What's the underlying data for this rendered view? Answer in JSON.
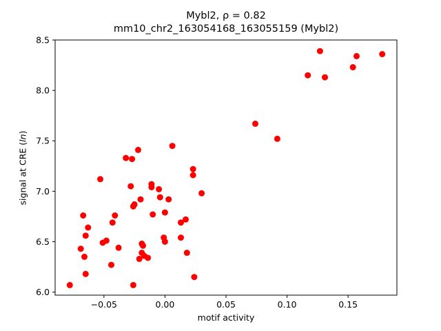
{
  "chart_data": {
    "type": "scatter",
    "title_line1": "Mybl2, ρ = 0.82",
    "title_line2": "mm10_chr2_163054168_163055159 (Mybl2)",
    "xlabel": "motif activity",
    "ylabel": "signal at CRE (ln)",
    "xlim": [
      -0.09,
      0.19
    ],
    "ylim": [
      5.97,
      8.5
    ],
    "xticks": [
      -0.05,
      0.0,
      0.05,
      0.1,
      0.15
    ],
    "xtick_labels": [
      "−0.05",
      "0.00",
      "0.05",
      "0.10",
      "0.15"
    ],
    "yticks": [
      6.0,
      6.5,
      7.0,
      7.5,
      8.0,
      8.5
    ],
    "ytick_labels": [
      "6.0",
      "6.5",
      "7.0",
      "7.5",
      "8.0",
      "8.5"
    ],
    "marker_color": "#ff0000",
    "grid": false,
    "points": [
      {
        "x": -0.078,
        "y": 6.07
      },
      {
        "x": -0.069,
        "y": 6.43
      },
      {
        "x": -0.067,
        "y": 6.76
      },
      {
        "x": -0.066,
        "y": 6.35
      },
      {
        "x": -0.065,
        "y": 6.56
      },
      {
        "x": -0.065,
        "y": 6.18
      },
      {
        "x": -0.063,
        "y": 6.64
      },
      {
        "x": -0.053,
        "y": 7.12
      },
      {
        "x": -0.051,
        "y": 6.49
      },
      {
        "x": -0.048,
        "y": 6.51
      },
      {
        "x": -0.044,
        "y": 6.27
      },
      {
        "x": -0.043,
        "y": 6.69
      },
      {
        "x": -0.041,
        "y": 6.76
      },
      {
        "x": -0.038,
        "y": 6.44
      },
      {
        "x": -0.032,
        "y": 7.33
      },
      {
        "x": -0.028,
        "y": 7.05
      },
      {
        "x": -0.027,
        "y": 7.32
      },
      {
        "x": -0.026,
        "y": 6.85
      },
      {
        "x": -0.026,
        "y": 6.07
      },
      {
        "x": -0.025,
        "y": 6.87
      },
      {
        "x": -0.022,
        "y": 7.41
      },
      {
        "x": -0.021,
        "y": 6.33
      },
      {
        "x": -0.02,
        "y": 6.92
      },
      {
        "x": -0.019,
        "y": 6.39
      },
      {
        "x": -0.019,
        "y": 6.48
      },
      {
        "x": -0.018,
        "y": 6.46
      },
      {
        "x": -0.017,
        "y": 6.36
      },
      {
        "x": -0.014,
        "y": 6.34
      },
      {
        "x": -0.011,
        "y": 7.07
      },
      {
        "x": -0.011,
        "y": 7.04
      },
      {
        "x": -0.01,
        "y": 6.77
      },
      {
        "x": -0.005,
        "y": 7.02
      },
      {
        "x": -0.004,
        "y": 6.94
      },
      {
        "x": -0.001,
        "y": 6.54
      },
      {
        "x": 0.0,
        "y": 6.5
      },
      {
        "x": 0.0,
        "y": 6.79
      },
      {
        "x": 0.003,
        "y": 6.92
      },
      {
        "x": 0.006,
        "y": 7.45
      },
      {
        "x": 0.013,
        "y": 6.69
      },
      {
        "x": 0.013,
        "y": 6.54
      },
      {
        "x": 0.017,
        "y": 6.72
      },
      {
        "x": 0.018,
        "y": 6.39
      },
      {
        "x": 0.023,
        "y": 7.22
      },
      {
        "x": 0.023,
        "y": 7.16
      },
      {
        "x": 0.024,
        "y": 6.15
      },
      {
        "x": 0.03,
        "y": 6.98
      },
      {
        "x": 0.074,
        "y": 7.67
      },
      {
        "x": 0.092,
        "y": 7.52
      },
      {
        "x": 0.117,
        "y": 8.15
      },
      {
        "x": 0.127,
        "y": 8.39
      },
      {
        "x": 0.131,
        "y": 8.13
      },
      {
        "x": 0.154,
        "y": 8.23
      },
      {
        "x": 0.157,
        "y": 8.34
      },
      {
        "x": 0.178,
        "y": 8.36
      }
    ]
  }
}
